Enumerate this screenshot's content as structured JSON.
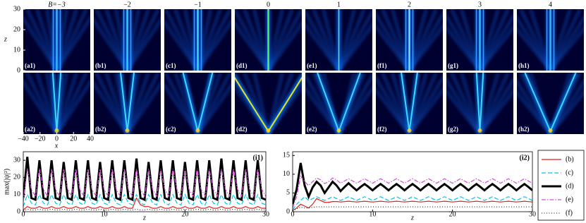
{
  "heatmaps": {
    "column_titles": [
      "B=−3",
      "−2",
      "−1",
      "0",
      "1",
      "2",
      "3",
      "4"
    ],
    "panel_labels_top": [
      "(a1)",
      "(b1)",
      "(c1)",
      "(d1)",
      "(e1)",
      "(f1)",
      "(g1)",
      "(h1)"
    ],
    "panel_labels_bottom": [
      "(a2)",
      "(b2)",
      "(c2)",
      "(d2)",
      "(e2)",
      "(f2)",
      "(g2)",
      "(h2)"
    ],
    "xlabel": "x",
    "ylabel": "z",
    "xlim": [
      -40,
      40
    ],
    "xticks": [
      {
        "value": -40,
        "label": "−40"
      },
      {
        "value": -20,
        "label": "−20"
      },
      0,
      20,
      40
    ],
    "ylim": [
      0,
      30
    ],
    "yticks": [
      0,
      10,
      20,
      30
    ]
  },
  "chart_data": [
    {
      "type": "line",
      "panel_label": "(i1)",
      "ylabel": "max(|ψ|²)",
      "xlabel": "z",
      "xlim": [
        0,
        30
      ],
      "xticks": [
        0,
        10,
        20,
        30
      ],
      "ylim": [
        0,
        35
      ],
      "yticks": [
        0,
        10,
        20,
        30
      ],
      "x": [
        0,
        0.5,
        1,
        1.5,
        2,
        2.5,
        3,
        3.5,
        4,
        4.5,
        5,
        5.5,
        6,
        6.5,
        7,
        7.5,
        8,
        8.5,
        9,
        9.5,
        10,
        10.5,
        11,
        11.5,
        12,
        12.5,
        13,
        13.5,
        14,
        14.5,
        15,
        15.5,
        16,
        16.5,
        17,
        17.5,
        18,
        18.5,
        19,
        19.5,
        20,
        20.5,
        21,
        21.5,
        22,
        22.5,
        23,
        23.5,
        24,
        24.5,
        25,
        25.5,
        26,
        26.5,
        27,
        27.5,
        28,
        28.5,
        29,
        29.5,
        30
      ],
      "series": [
        {
          "color": "#e0201b",
          "dash": "solid",
          "width": 1.2,
          "values": [
            1,
            3,
            2,
            2,
            3,
            2,
            2,
            3,
            2,
            2,
            3,
            2,
            2,
            3,
            2,
            2,
            3,
            2,
            2,
            3,
            2,
            2,
            3,
            2,
            2,
            3,
            2,
            2,
            8,
            4,
            3,
            3,
            2,
            2,
            3,
            2,
            2,
            3,
            2,
            2,
            3,
            2,
            2,
            3,
            2,
            2,
            3,
            2,
            2,
            3,
            2,
            2,
            3,
            2,
            2,
            3,
            2,
            2,
            3,
            2,
            2
          ]
        },
        {
          "color": "#00c8e6",
          "dash": "dashed",
          "width": 1.2,
          "values": [
            3,
            10,
            5,
            4,
            10,
            5,
            4,
            10,
            5,
            4,
            10,
            5,
            4,
            10,
            5,
            4,
            10,
            5,
            4,
            10,
            5,
            4,
            10,
            5,
            4,
            10,
            5,
            4,
            10,
            5,
            4,
            10,
            5,
            4,
            10,
            5,
            4,
            10,
            5,
            4,
            10,
            5,
            4,
            10,
            5,
            4,
            10,
            5,
            4,
            10,
            5,
            4,
            10,
            5,
            4,
            10,
            5,
            4,
            10,
            5,
            4
          ]
        },
        {
          "color": "#000000",
          "dash": "solid",
          "width": 3,
          "values": [
            8,
            32,
            8,
            7,
            30,
            8,
            7,
            30,
            8,
            7,
            29,
            8,
            7,
            30,
            8,
            7,
            30,
            8,
            7,
            29,
            8,
            7,
            30,
            8,
            7,
            30,
            8,
            7,
            31,
            8,
            7,
            29,
            8,
            7,
            30,
            8,
            7,
            30,
            8,
            7,
            29,
            8,
            7,
            30,
            8,
            7,
            30,
            8,
            7,
            31,
            8,
            7,
            30,
            8,
            7,
            30,
            8,
            7,
            30,
            8,
            7
          ]
        },
        {
          "color": "#d84fd8",
          "dash": "dashdot",
          "width": 1.2,
          "values": [
            6,
            25,
            13,
            9,
            25,
            13,
            9,
            25,
            13,
            9,
            25,
            13,
            9,
            25,
            13,
            9,
            25,
            13,
            9,
            25,
            13,
            9,
            25,
            13,
            9,
            25,
            13,
            9,
            25,
            13,
            9,
            25,
            13,
            9,
            25,
            13,
            9,
            25,
            13,
            9,
            25,
            13,
            9,
            25,
            13,
            9,
            25,
            13,
            9,
            25,
            13,
            9,
            25,
            13,
            9,
            25,
            13,
            9,
            25,
            13,
            9
          ]
        },
        {
          "color": "#000000",
          "dash": "dotted",
          "width": 1,
          "values": [
            0.5,
            1.5,
            1,
            1,
            1.5,
            1,
            1,
            1.5,
            1,
            1,
            1.5,
            1,
            1,
            1.5,
            1,
            1,
            1.5,
            1,
            1,
            1.5,
            1,
            1,
            1.5,
            1,
            1,
            1.5,
            1,
            1,
            1.5,
            1,
            1,
            1.5,
            1,
            1,
            1.5,
            1,
            1,
            1.5,
            1,
            1,
            1.5,
            1,
            1,
            1.5,
            1,
            1,
            1.5,
            1,
            1,
            1.5,
            1,
            1,
            1.5,
            1,
            1,
            1.5,
            1,
            1,
            1.5,
            1,
            1
          ]
        }
      ]
    },
    {
      "type": "line",
      "panel_label": "(i2)",
      "xlabel": "z",
      "xlim": [
        0,
        30
      ],
      "xticks": [
        0,
        10,
        20,
        30
      ],
      "ylim": [
        0,
        16
      ],
      "yticks": [
        0,
        5,
        10,
        15
      ],
      "x": [
        0,
        0.5,
        1,
        1.5,
        2,
        2.5,
        3,
        3.5,
        4,
        4.5,
        5,
        5.5,
        6,
        6.5,
        7,
        7.5,
        8,
        8.5,
        9,
        9.5,
        10,
        10.5,
        11,
        11.5,
        12,
        12.5,
        13,
        13.5,
        14,
        14.5,
        15,
        15.5,
        16,
        16.5,
        17,
        17.5,
        18,
        18.5,
        19,
        19.5,
        20,
        20.5,
        21,
        21.5,
        22,
        22.5,
        23,
        23.5,
        24,
        24.5,
        25,
        25.5,
        26,
        26.5,
        27,
        27.5,
        28,
        28.5,
        29,
        29.5,
        30
      ],
      "series": [
        {
          "name": "(b)",
          "color": "#e0201b",
          "dash": "solid",
          "width": 1.2,
          "values": [
            0.3,
            1,
            2,
            1.5,
            1,
            2,
            3.5,
            3,
            2.5,
            2.5,
            2.7,
            2.7,
            2.6,
            2.7,
            2.8,
            2.7,
            2.6,
            2.7,
            2.8,
            2.7,
            2.6,
            2.7,
            2.8,
            2.7,
            2.6,
            2.7,
            2.8,
            2.7,
            2.6,
            2.7,
            2.8,
            2.7,
            2.6,
            2.7,
            2.8,
            2.7,
            2.6,
            2.7,
            2.8,
            2.7,
            2.6,
            2.7,
            2.8,
            2.7,
            2.6,
            2.7,
            2.8,
            2.7,
            2.6,
            2.7,
            2.8,
            2.7,
            2.6,
            2.7,
            2.8,
            2.7,
            2.6,
            2.7,
            2.8,
            2.7,
            2.6
          ]
        },
        {
          "name": "(c)",
          "color": "#00c8e6",
          "dash": "dashed",
          "width": 1.2,
          "values": [
            0.5,
            2,
            3,
            4,
            3,
            3.5,
            4,
            3.5,
            3,
            3.5,
            4,
            3.5,
            3,
            3.5,
            4,
            3.5,
            3,
            3.5,
            4,
            3.5,
            3,
            3.5,
            4,
            3.5,
            3,
            3.5,
            4,
            3.5,
            3,
            3.5,
            4,
            3.5,
            3,
            3.5,
            4,
            3.5,
            3,
            3.5,
            4,
            3.5,
            3,
            3.5,
            4,
            3.5,
            3,
            3.5,
            4,
            3.5,
            3,
            3.5,
            4,
            3.5,
            3,
            3.5,
            4,
            3.5,
            3,
            3.5,
            4,
            3.5,
            3
          ]
        },
        {
          "name": "(d)",
          "color": "#000000",
          "dash": "solid",
          "width": 3,
          "values": [
            2,
            6,
            13,
            7,
            4,
            6.5,
            8,
            7,
            5,
            6.5,
            8,
            7,
            5.5,
            6.6,
            7.6,
            6.6,
            5.7,
            6.6,
            7.4,
            6.6,
            5.7,
            6.6,
            7.4,
            6.6,
            5.7,
            6.6,
            7.4,
            6.6,
            5.7,
            6.6,
            7.4,
            6.6,
            5.7,
            6.6,
            7.4,
            6.6,
            5.7,
            6.6,
            7.4,
            6.6,
            5.7,
            6.6,
            7.4,
            6.6,
            5.7,
            6.6,
            7.4,
            6.6,
            5.7,
            6.6,
            7.4,
            6.6,
            5.7,
            6.6,
            7.4,
            6.6,
            5.7,
            6.6,
            7.4,
            6.6,
            5.7
          ]
        },
        {
          "name": "(e)",
          "color": "#d84fd8",
          "dash": "dashdot",
          "width": 1.2,
          "values": [
            1,
            4,
            9.5,
            8,
            7,
            8,
            9,
            8.5,
            7.5,
            8,
            9,
            8.5,
            7.6,
            8.2,
            8.8,
            8.2,
            7.6,
            8.2,
            8.8,
            8.2,
            7.6,
            8.2,
            8.8,
            8.2,
            7.6,
            8.2,
            8.8,
            8.2,
            7.6,
            8.2,
            8.8,
            8.2,
            7.6,
            8.2,
            8.8,
            8.2,
            7.6,
            8.2,
            8.8,
            8.2,
            7.6,
            8.2,
            8.8,
            8.2,
            7.6,
            8.2,
            8.8,
            8.2,
            7.6,
            8.2,
            8.8,
            8.2,
            7.6,
            8.2,
            8.8,
            8.2,
            7.6,
            8.2,
            8.8,
            8.2,
            7.6
          ]
        },
        {
          "name": "(f)",
          "color": "#000000",
          "dash": "dotted",
          "width": 1,
          "values": [
            0.2,
            0.8,
            1.2,
            1,
            1,
            1.2,
            1.3,
            1.3,
            1.3,
            1.3,
            1.3,
            1.3,
            1.3,
            1.3,
            1.3,
            1.3,
            1.3,
            1.3,
            1.3,
            1.3,
            1.3,
            1.3,
            1.3,
            1.3,
            1.3,
            1.3,
            1.3,
            1.3,
            1.3,
            1.3,
            1.3,
            1.3,
            1.3,
            1.3,
            1.3,
            1.3,
            1.3,
            1.3,
            1.3,
            1.3,
            1.3,
            1.3,
            1.3,
            1.3,
            1.3,
            1.3,
            1.3,
            1.3,
            1.3,
            1.3,
            1.3,
            1.3,
            1.3,
            1.3,
            1.3,
            1.3,
            1.3,
            1.3,
            1.3,
            1.3,
            1.3
          ]
        }
      ]
    }
  ]
}
